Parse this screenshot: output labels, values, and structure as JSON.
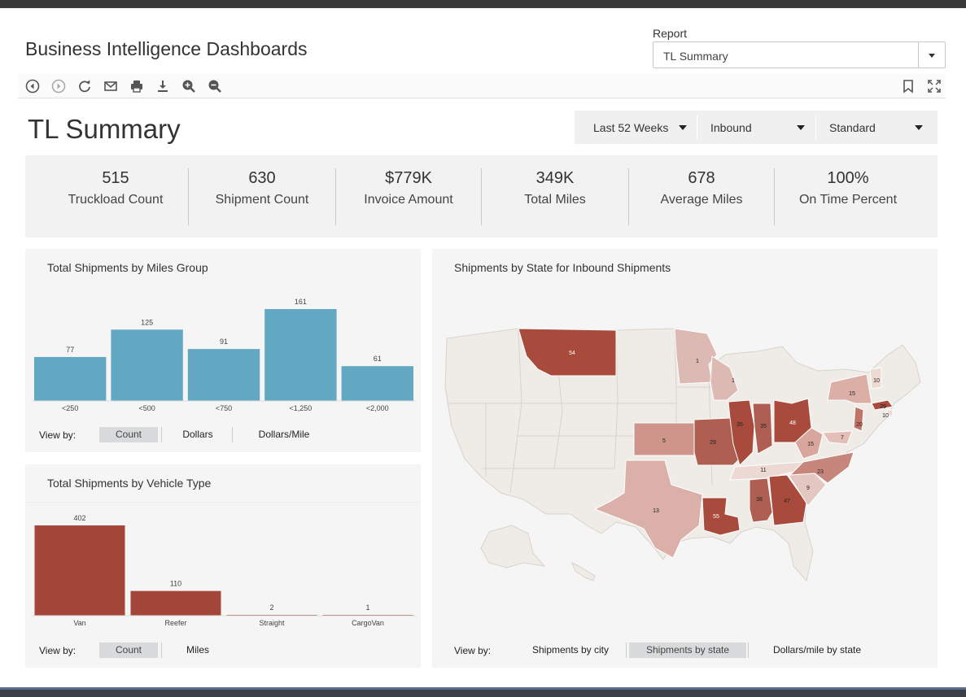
{
  "app": {
    "title": "Business Intelligence Dashboards",
    "report_label": "Report",
    "report_value": "TL Summary"
  },
  "toolbar": {
    "icons": [
      "back-icon",
      "forward-icon",
      "refresh-icon",
      "email-icon",
      "print-icon",
      "download-icon",
      "zoom-in-icon",
      "zoom-out-icon",
      "bookmark-icon",
      "fullscreen-icon"
    ]
  },
  "page": {
    "title": "TL Summary",
    "filters": {
      "period": "Last 52 Weeks",
      "direction": "Inbound",
      "mode": "Standard"
    }
  },
  "kpis": [
    {
      "value": "515",
      "label": "Truckload Count"
    },
    {
      "value": "630",
      "label": "Shipment Count"
    },
    {
      "value": "$779K",
      "label": "Invoice Amount"
    },
    {
      "value": "349K",
      "label": "Total Miles"
    },
    {
      "value": "678",
      "label": "Average Miles"
    },
    {
      "value": "100%",
      "label": "On Time Percent"
    }
  ],
  "miles_panel": {
    "title": "Total Shipments by Miles Group",
    "view_by_label": "View by:",
    "buttons": [
      "Count",
      "Dollars",
      "Dollars/Mile"
    ],
    "active": "Count"
  },
  "vehicle_panel": {
    "title": "Total Shipments by Vehicle Type",
    "view_by_label": "View by:",
    "buttons": [
      "Count",
      "Miles"
    ],
    "active": "Count"
  },
  "map_panel": {
    "title": "Shipments by State for Inbound Shipments",
    "view_by_label": "View by:",
    "buttons": [
      "Shipments by city",
      "Shipments by state",
      "Dollars/mile by state"
    ],
    "active": "Shipments by state",
    "state_values": [
      {
        "state": "MT",
        "value": 54
      },
      {
        "state": "MN",
        "value": 1
      },
      {
        "state": "WI",
        "value": 1
      },
      {
        "state": "IL",
        "value": 35
      },
      {
        "state": "IN",
        "value": 35
      },
      {
        "state": "OH",
        "value": 48
      },
      {
        "state": "MO",
        "value": 29
      },
      {
        "state": "KS",
        "value": 5
      },
      {
        "state": "TX",
        "value": 13
      },
      {
        "state": "LA",
        "value": 55
      },
      {
        "state": "AL",
        "value": 38
      },
      {
        "state": "GA",
        "value": 47
      },
      {
        "state": "SC",
        "value": 9
      },
      {
        "state": "NC",
        "value": 23
      },
      {
        "state": "TN",
        "value": 11
      },
      {
        "state": "WV",
        "value": 15
      },
      {
        "state": "NY",
        "value": 15
      },
      {
        "state": "VT",
        "value": 10
      },
      {
        "state": "MA",
        "value": 29
      },
      {
        "state": "RI",
        "value": 10
      },
      {
        "state": "NJ",
        "value": 20
      },
      {
        "state": "MD",
        "value": 7
      }
    ]
  },
  "colors": {
    "bar_blue": "#62a8c2",
    "bar_red": "#a5463a",
    "map_base": "#efeae4"
  },
  "chart_data": [
    {
      "type": "bar",
      "title": "Total Shipments by Miles Group",
      "categories": [
        "<250",
        "<500",
        "<750",
        "<1,250",
        "<2,000"
      ],
      "values": [
        77,
        125,
        91,
        161,
        61
      ],
      "ylim": [
        0,
        161
      ],
      "grid": false
    },
    {
      "type": "bar",
      "title": "Total Shipments by Vehicle Type",
      "categories": [
        "Van",
        "Reefer",
        "Straight",
        "CargoVan"
      ],
      "values": [
        402,
        110,
        2,
        1
      ],
      "ylim": [
        0,
        402
      ],
      "grid": false
    }
  ]
}
